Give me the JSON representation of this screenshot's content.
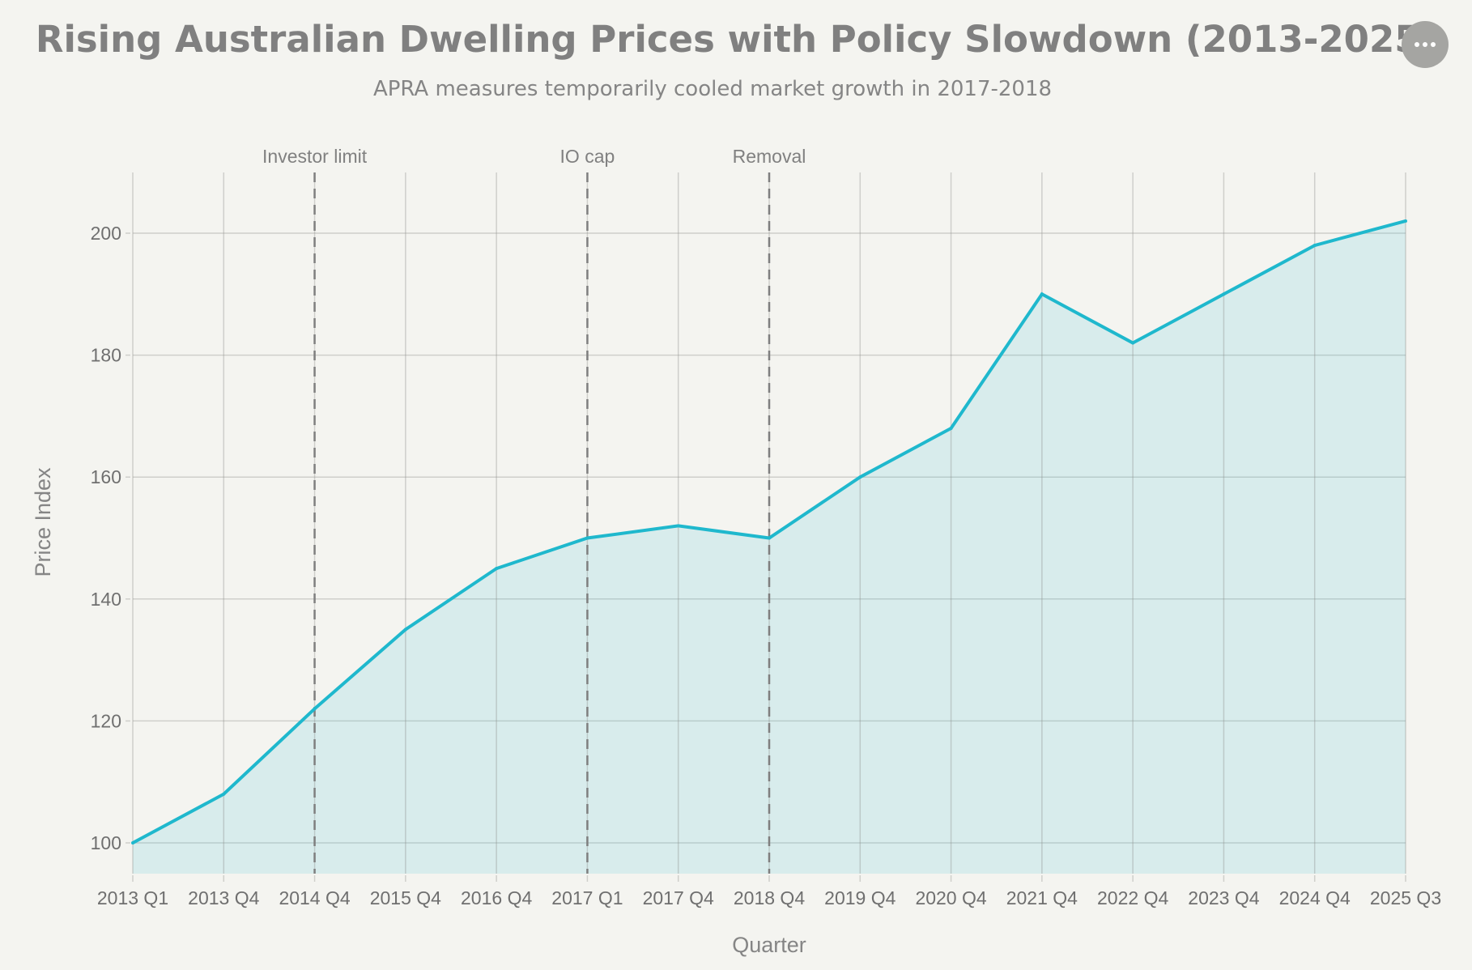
{
  "header": {
    "title": "Rising Australian Dwelling Prices with Policy Slowdown (2013-2025)",
    "subtitle": "APRA measures temporarily cooled market growth in 2017-2018",
    "menu_button_icon": "more-horizontal-icon"
  },
  "colors": {
    "background": "#f4f4f0",
    "line": "#1fb8cd",
    "area_fill": "#d9ebea",
    "grid": "#cfcfcb",
    "annotation_line": "#7f7f7f",
    "text": "#6f6f6f"
  },
  "chart_data": {
    "type": "area",
    "title": "Rising Australian Dwelling Prices with Policy Slowdown (2013-2025)",
    "subtitle": "APRA measures temporarily cooled market growth in 2017-2018",
    "xlabel": "Quarter",
    "ylabel": "Price Index",
    "categories": [
      "2013 Q1",
      "2013 Q4",
      "2014 Q4",
      "2015 Q4",
      "2016 Q4",
      "2017 Q1",
      "2017 Q4",
      "2018 Q4",
      "2019 Q4",
      "2020 Q4",
      "2021 Q4",
      "2022 Q4",
      "2023 Q4",
      "2024 Q4",
      "2025 Q3"
    ],
    "series": [
      {
        "name": "Price Index",
        "values": [
          100,
          108,
          122,
          135,
          145,
          150,
          152,
          150,
          160,
          168,
          190,
          182,
          190,
          198,
          202
        ]
      }
    ],
    "ylim": [
      95,
      210
    ],
    "yticks": [
      100,
      120,
      140,
      160,
      180,
      200
    ],
    "grid": true,
    "legend": "none",
    "annotations": [
      {
        "x": "2014 Q4",
        "label": "Investor limit",
        "style": "dashed-vertical"
      },
      {
        "x": "2017 Q1",
        "label": "IO cap",
        "style": "dashed-vertical"
      },
      {
        "x": "2018 Q4",
        "label": "Removal",
        "style": "dashed-vertical"
      }
    ]
  }
}
